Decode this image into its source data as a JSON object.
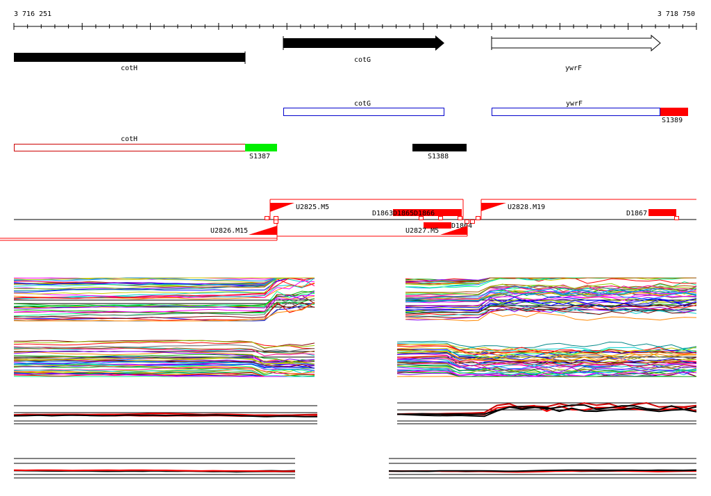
{
  "ruler": {
    "start_label": "3 716 251",
    "end_label": "3 718 750",
    "start": 3716251,
    "end": 3718750
  },
  "genes": [
    {
      "name": "cotH",
      "start": 3716251,
      "end": 3717098,
      "strand": "-",
      "fill": "#000000"
    },
    {
      "name": "cotG",
      "start": 3717238,
      "end": 3717826,
      "strand": "+",
      "fill": "#000000"
    },
    {
      "name": "ywrF",
      "start": 3718000,
      "end": 3718630,
      "strand": "+",
      "fill": "#ffffff"
    }
  ],
  "transcripts": [
    {
      "name": "cotG",
      "start": 3717238,
      "end": 3717826,
      "color": "#0000cc"
    },
    {
      "name": "ywrF",
      "start": 3718000,
      "end": 3718615,
      "color": "#0000cc"
    },
    {
      "name": "cotH",
      "start": 3716251,
      "end": 3717098,
      "color": "#cc0000"
    }
  ],
  "segments": [
    {
      "name": "S1389",
      "start": 3718615,
      "end": 3718718,
      "color": "#ff0000"
    },
    {
      "name": "S1387",
      "start": 3717098,
      "end": 3717215,
      "color": "#00ee00"
    },
    {
      "name": "S1388",
      "start": 3717715,
      "end": 3717913,
      "color": "#000000"
    }
  ],
  "features": {
    "upper": [
      {
        "name": "U2825.M5"
      },
      {
        "name": "U2828.M19"
      }
    ],
    "lower": [
      {
        "name": "U2826.M15"
      },
      {
        "name": "U2827.M5"
      }
    ],
    "dlabels": [
      {
        "name": "D1863"
      },
      {
        "name": "D1865"
      },
      {
        "name": "D1866"
      },
      {
        "name": "D1864"
      },
      {
        "name": "D1867"
      }
    ]
  },
  "colors": {
    "accent_red": "#ff0000",
    "segment_green": "#00ee00",
    "transcript_blue": "#0000cc"
  },
  "expression_panels": [
    {
      "id": "p1"
    },
    {
      "id": "p2"
    },
    {
      "id": "p3"
    },
    {
      "id": "p4"
    },
    {
      "id": "p5"
    },
    {
      "id": "p6"
    },
    {
      "id": "p7"
    },
    {
      "id": "p8"
    }
  ]
}
